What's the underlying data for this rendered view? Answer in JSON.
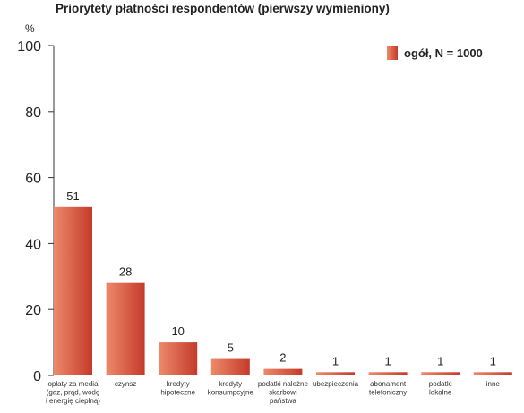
{
  "chart_data": {
    "type": "bar",
    "title": "Priorytety płatności respondentów  (pierwszy wymieniony)",
    "y_unit": "%",
    "ylim": [
      0,
      100
    ],
    "yticks": [
      0,
      20,
      40,
      60,
      80,
      100
    ],
    "grid": false,
    "legend": {
      "label": "ogół, N = 1000",
      "position": "top-right"
    },
    "categories": [
      [
        "opłaty za media",
        "(gaz, prąd, wodę",
        "i energię cieplną)"
      ],
      [
        "czynsz"
      ],
      [
        "kredyty",
        "hipoteczne"
      ],
      [
        "kredyty",
        "konsumpcyjne"
      ],
      [
        "podatki należne",
        "skarbowi",
        "państwa"
      ],
      [
        "ubezpieczenia"
      ],
      [
        "abonament",
        "telefoniczny"
      ],
      [
        "podatki",
        "lokalne"
      ],
      [
        "inne"
      ]
    ],
    "series": [
      {
        "name": "ogół, N = 1000",
        "values": [
          51,
          28,
          10,
          5,
          2,
          1,
          1,
          1,
          1
        ]
      }
    ],
    "colors": {
      "bar_light": "#ec8a6a",
      "bar_dark": "#c53a2a",
      "axis": "#333333"
    }
  }
}
